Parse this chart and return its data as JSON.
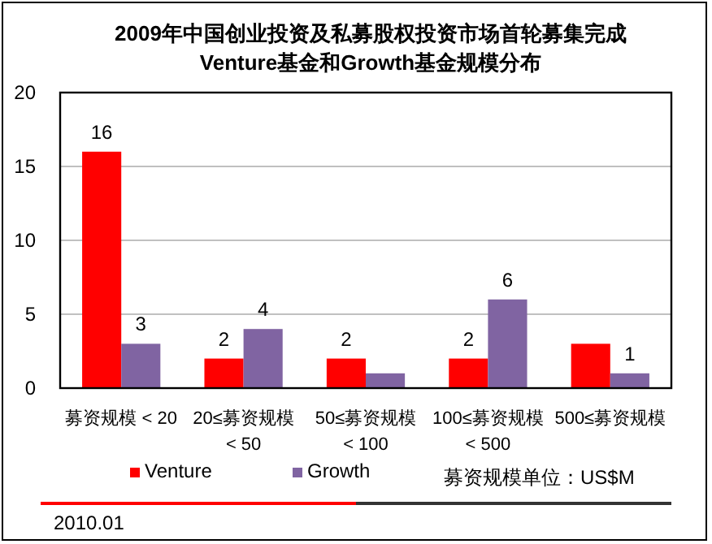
{
  "chart_data": {
    "type": "bar",
    "title": "2009年中国创业投资及私募股权投资市场首轮募集完成\nVenture基金和Growth基金规模分布",
    "categories": [
      "募资规模 < 20",
      "20≤募资规模 < 50",
      "50≤募资规模 < 100",
      "100≤募资规模 < 500",
      "500≤募资规模"
    ],
    "series": [
      {
        "name": "Venture",
        "color": "#ff0000",
        "values": [
          16,
          2,
          2,
          2,
          3
        ],
        "value_labels": [
          "16",
          "2",
          "2",
          "2",
          null
        ]
      },
      {
        "name": "Growth",
        "color": "#8064a2",
        "values": [
          3,
          4,
          1,
          6,
          1
        ],
        "value_labels": [
          "3",
          "4",
          null,
          "6",
          "1"
        ]
      }
    ],
    "ylim": [
      0,
      20
    ],
    "yticks": [
      0,
      5,
      10,
      15,
      20
    ],
    "grid": "y",
    "legend": "bottom",
    "annotations": [
      "募资规模单位：US$M",
      "2010.01"
    ]
  }
}
